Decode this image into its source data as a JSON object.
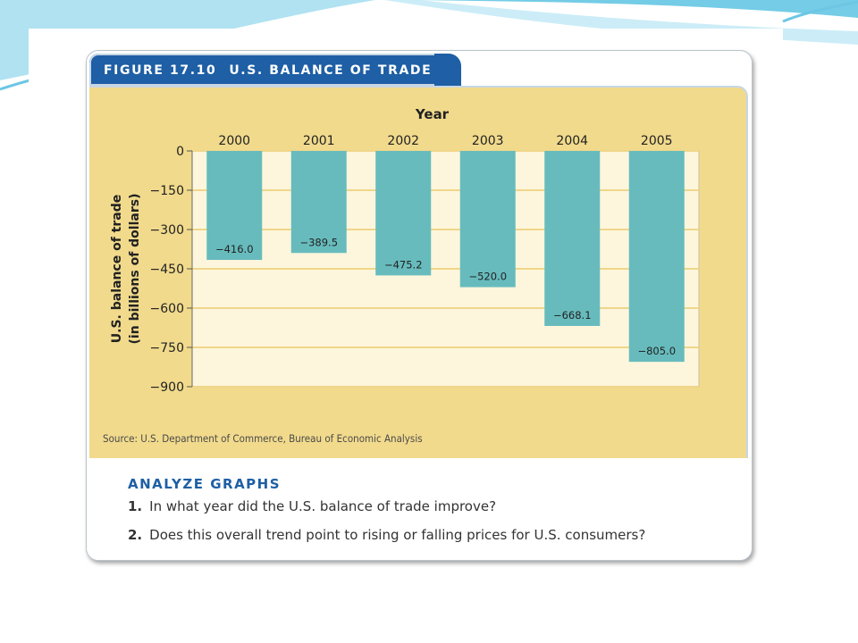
{
  "figure": {
    "number": "FIGURE 17.10",
    "title": "U.S. BALANCE OF TRADE",
    "source": "Source: U.S. Department of Commerce, Bureau of Economic Analysis"
  },
  "analyze": {
    "heading": "ANALYZE GRAPHS",
    "questions": [
      {
        "num": "1.",
        "text": "In what year did the U.S. balance of trade improve?"
      },
      {
        "num": "2.",
        "text": "Does this overall trend point to rising or falling prices for U.S. consumers?"
      }
    ]
  },
  "colors": {
    "tab": "#1e5fa5",
    "panel": "#f1da8c",
    "plot_bg": "#fdf6dc",
    "bar": "#67bbbd",
    "gridline": "#f0d68a",
    "swoosh": "#5cc3e2"
  },
  "chart_data": {
    "type": "bar",
    "orientation": "vertical-down",
    "categories": [
      "2000",
      "2001",
      "2002",
      "2003",
      "2004",
      "2005"
    ],
    "values": [
      -416.0,
      -389.5,
      -475.2,
      -520.0,
      -668.1,
      -805.0
    ],
    "value_labels": [
      "−416.0",
      "−389.5",
      "−475.2",
      "−520.0",
      "−668.1",
      "−805.0"
    ],
    "xlabel": "Year",
    "ylabel": "U.S. balance of trade",
    "ylabel2": "(in billions of dollars)",
    "yticks": [
      0,
      -150,
      -300,
      -450,
      -600,
      -750,
      -900
    ],
    "ytick_labels": [
      "0",
      "−150",
      "−300",
      "−450",
      "−600",
      "−750",
      "−900"
    ],
    "ylim": [
      -900,
      0
    ],
    "x_axis_position": "top",
    "grid": true
  }
}
